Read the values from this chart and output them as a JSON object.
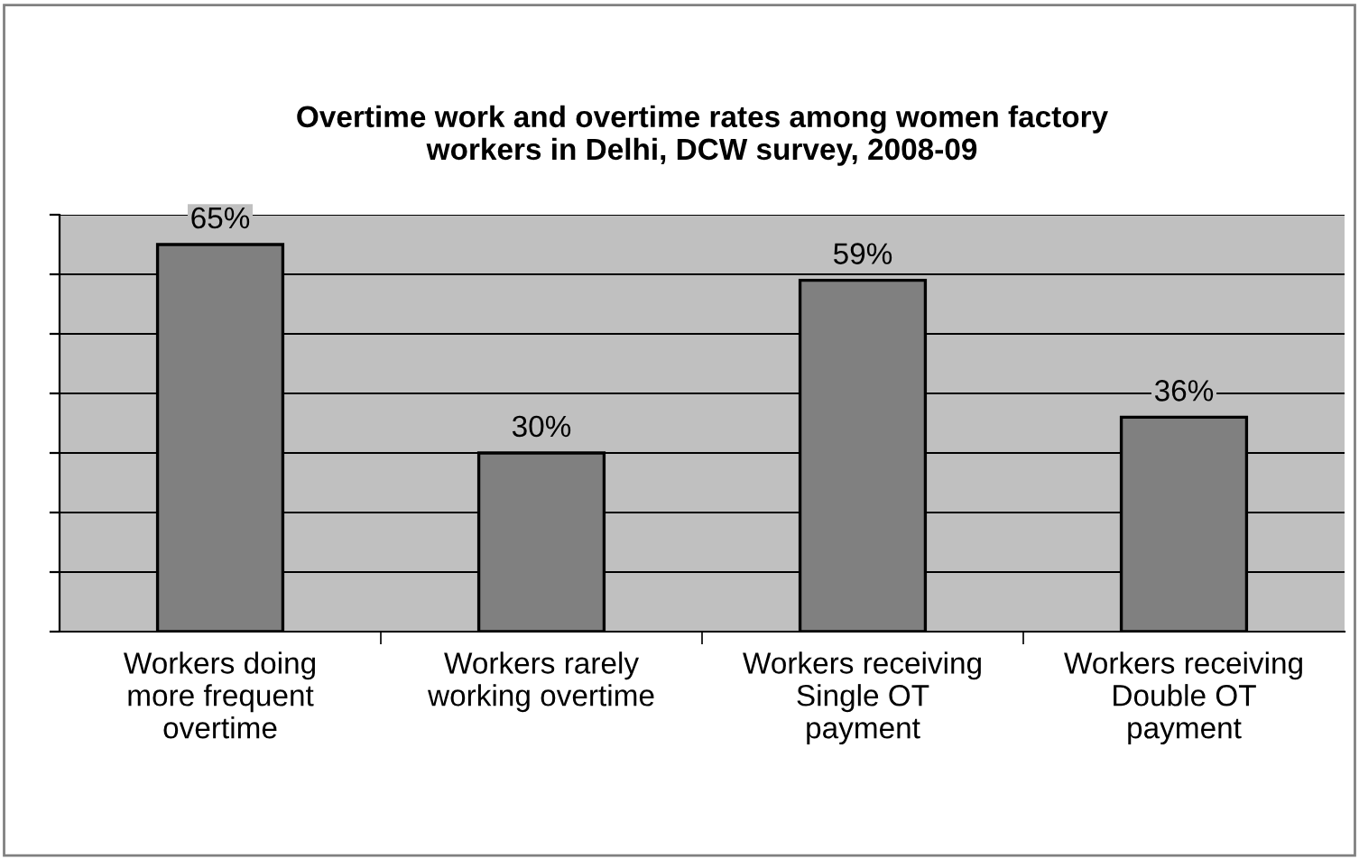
{
  "chart_data": {
    "type": "bar",
    "title": "Overtime work and overtime rates among women factory\nworkers in Delhi, DCW survey, 2008-09",
    "categories": [
      "Workers doing\nmore frequent\novertime",
      "Workers rarely\nworking overtime",
      "Workers receiving\nSingle OT\npayment",
      "Workers receiving\nDouble OT\npayment"
    ],
    "values": [
      65,
      30,
      59,
      36
    ],
    "value_labels": [
      "65%",
      "30%",
      "59%",
      "36%"
    ],
    "color": "#808080",
    "ylim": [
      0,
      70
    ],
    "yticks": [
      {
        "value": 0,
        "label": null
      },
      {
        "value": 10,
        "label": null
      },
      {
        "value": 20,
        "label": null
      },
      {
        "value": 30,
        "label": null
      },
      {
        "value": 40,
        "label": null
      },
      {
        "value": 50,
        "label": null
      },
      {
        "value": 60,
        "label": null
      },
      {
        "value": 70,
        "label": null
      }
    ],
    "grid": "y"
  }
}
